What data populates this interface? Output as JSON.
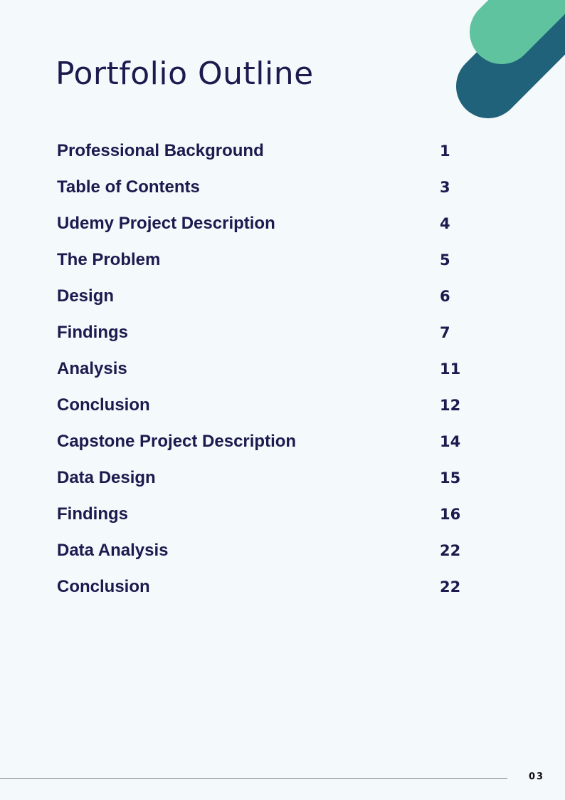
{
  "document": {
    "title": "Portfolio Outline",
    "page_number": "03"
  },
  "colors": {
    "background": "#f4f9fb",
    "text": "#1c1a4e",
    "accent_green": "#5fc3a0",
    "accent_teal": "#1f6279"
  },
  "decor": {
    "shapes": [
      "teal-diagonal-bar",
      "green-diagonal-bar"
    ]
  },
  "toc": [
    {
      "label": "Professional Background",
      "page": "1"
    },
    {
      "label": "Table of Contents",
      "page": "3"
    },
    {
      "label": "Udemy Project Description",
      "page": "4"
    },
    {
      "label": "The Problem",
      "page": "5"
    },
    {
      "label": "Design",
      "page": "6"
    },
    {
      "label": "Findings",
      "page": "7"
    },
    {
      "label": "Analysis",
      "page": "11"
    },
    {
      "label": "Conclusion",
      "page": "12"
    },
    {
      "label": "Capstone Project Description",
      "page": "14"
    },
    {
      "label": "Data Design",
      "page": "15"
    },
    {
      "label": "Findings",
      "page": "16"
    },
    {
      "label": "Data Analysis",
      "page": "22"
    },
    {
      "label": "Conclusion",
      "page": "22"
    }
  ]
}
